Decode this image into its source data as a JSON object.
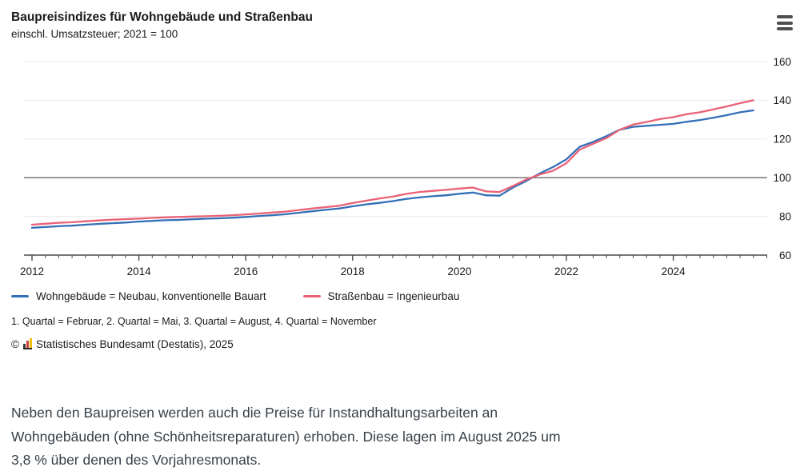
{
  "header": {
    "title": "Baupreisindizes für Wohngebäude und Straßenbau",
    "subtitle": "einschl. Umsatzsteuer; 2021 = 100"
  },
  "menu": {
    "icon": "hamburger-menu-icon"
  },
  "chart_data": {
    "type": "line",
    "title": "Baupreisindizes für Wohngebäude und Straßenbau",
    "subtitle": "einschl. Umsatzsteuer; 2021 = 100",
    "x_unit": "quarterly (1. Quartal = Februar, 2. Quartal = Mai, 3. Quartal = August, 4. Quartal = November)",
    "x_start_year": 2012,
    "x_step_years": 0.25,
    "x_axis_end_year": 2025.75,
    "x_tick_label_years": [
      2012,
      2014,
      2016,
      2018,
      2020,
      2022,
      2024
    ],
    "y_ticks": [
      60,
      80,
      100,
      120,
      140,
      160
    ],
    "ylim": [
      60,
      166
    ],
    "y_axis_side": "right",
    "reference_line_y": 100,
    "grid": "horizontal",
    "legend_position": "bottom-left",
    "colors": {
      "grid": "#eaeaea",
      "reference": "#747474",
      "axis": "#4a4a4a",
      "label": "#1a1a1a"
    },
    "series": [
      {
        "name": "Wohngebäude = Neubau, konventionelle Bauart",
        "color": "#3470b7",
        "values": [
          74.1,
          74.5,
          74.9,
          75.2,
          75.7,
          76.1,
          76.5,
          76.8,
          77.3,
          77.7,
          78.0,
          78.2,
          78.5,
          78.8,
          79.0,
          79.3,
          79.7,
          80.2,
          80.6,
          81.1,
          81.9,
          82.7,
          83.4,
          84.1,
          85.2,
          86.2,
          87.0,
          87.9,
          89.0,
          89.8,
          90.4,
          90.9,
          91.7,
          92.3,
          90.9,
          90.7,
          94.9,
          98.3,
          102.2,
          105.5,
          109.5,
          116.0,
          118.5,
          121.5,
          124.8,
          126.3,
          126.8,
          127.3,
          127.8,
          128.9,
          129.8,
          131.0,
          132.3,
          133.8,
          134.8
        ]
      },
      {
        "name": "Straßenbau = Ingenieurbau",
        "color": "#e96277",
        "values": [
          75.7,
          76.2,
          76.7,
          77.0,
          77.5,
          77.9,
          78.3,
          78.6,
          78.9,
          79.2,
          79.5,
          79.7,
          79.9,
          80.1,
          80.3,
          80.6,
          81.0,
          81.5,
          82.0,
          82.5,
          83.3,
          84.1,
          84.8,
          85.5,
          86.9,
          88.1,
          89.2,
          90.2,
          91.6,
          92.6,
          93.2,
          93.7,
          94.4,
          94.9,
          92.9,
          92.6,
          95.7,
          99.1,
          101.6,
          103.6,
          107.5,
          114.5,
          117.5,
          120.5,
          124.8,
          127.5,
          128.8,
          130.3,
          131.3,
          132.8,
          133.8,
          135.3,
          136.8,
          138.5,
          140.0
        ]
      }
    ]
  },
  "footnote": {
    "text": "1. Quartal = Februar, 2. Quartal = Mai, 3. Quartal = August, 4. Quartal = November"
  },
  "copyright": {
    "symbol": "©",
    "text": "Statistisches Bundesamt (Destatis), 2025"
  },
  "paragraph": {
    "text": "Neben den Baupreisen werden auch die Preise für Instandhaltungsarbeiten an Wohngebäuden (ohne Schönheitsreparaturen) erhoben. Diese lagen im August 2025 um 3,8 % über denen des Vorjahresmonats."
  }
}
